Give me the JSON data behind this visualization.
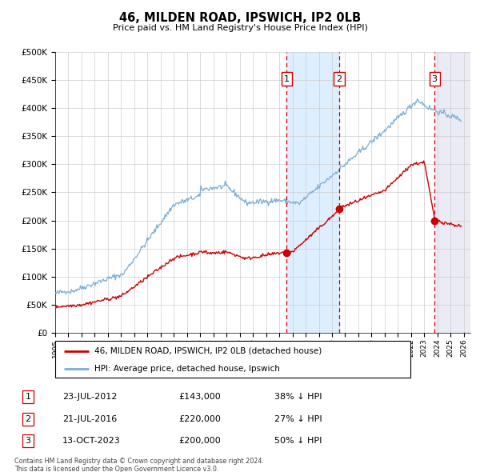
{
  "title": "46, MILDEN ROAD, IPSWICH, IP2 0LB",
  "subtitle": "Price paid vs. HM Land Registry's House Price Index (HPI)",
  "footer1": "Contains HM Land Registry data © Crown copyright and database right 2024.",
  "footer2": "This data is licensed under the Open Government Licence v3.0.",
  "legend_red": "46, MILDEN ROAD, IPSWICH, IP2 0LB (detached house)",
  "legend_blue": "HPI: Average price, detached house, Ipswich",
  "transactions": [
    {
      "num": 1,
      "date": "23-JUL-2012",
      "price": "£143,000",
      "pct": "38% ↓ HPI",
      "year": 2012.55,
      "val": 143000
    },
    {
      "num": 2,
      "date": "21-JUL-2016",
      "price": "£220,000",
      "pct": "27% ↓ HPI",
      "year": 2016.55,
      "val": 220000
    },
    {
      "num": 3,
      "date": "13-OCT-2023",
      "price": "£200,000",
      "pct": "50% ↓ HPI",
      "year": 2023.78,
      "val": 200000
    }
  ],
  "ylim": [
    0,
    500000
  ],
  "xlim_start": 1995.0,
  "xlim_end": 2026.5,
  "red_color": "#cc0000",
  "blue_color": "#7aadd4",
  "shading_color": "#ddeeff",
  "grid_color": "#cccccc",
  "bg_color": "#ffffff"
}
